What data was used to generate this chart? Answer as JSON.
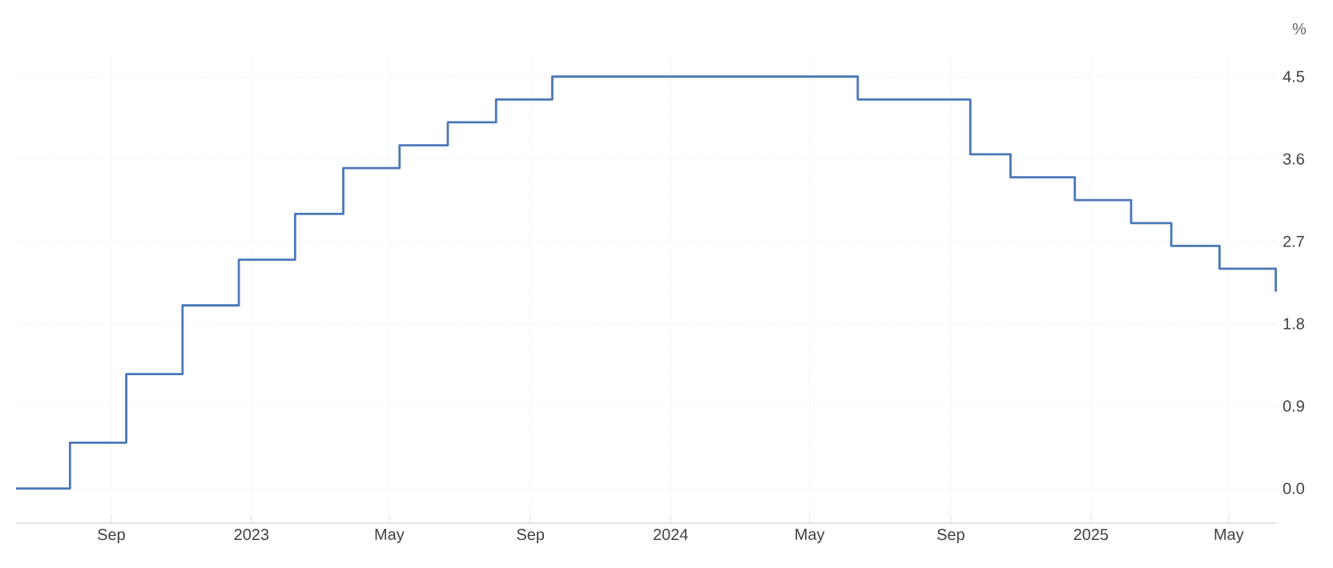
{
  "chart_data": {
    "type": "step",
    "ylabel": "%",
    "x": [
      "2022-06-10",
      "2022-07-27",
      "2022-09-14",
      "2022-11-02",
      "2022-12-21",
      "2023-02-08",
      "2023-03-22",
      "2023-05-10",
      "2023-06-21",
      "2023-08-02",
      "2023-09-20",
      "2024-06-12",
      "2024-09-18",
      "2024-10-23",
      "2024-12-18",
      "2025-02-05",
      "2025-03-12",
      "2025-04-23",
      "2025-06-11"
    ],
    "series": [
      {
        "color": "#4a78b8",
        "values": [
          0,
          0.5,
          1.25,
          2.0,
          2.5,
          3.0,
          3.5,
          3.75,
          4.0,
          4.25,
          4.5,
          4.25,
          3.65,
          3.4,
          3.15,
          2.9,
          2.65,
          2.4,
          2.15
        ]
      }
    ],
    "xlim": [
      "2022-06-10",
      "2025-06-12"
    ],
    "xticks": [
      {
        "value": "2022-09-01",
        "label": "Sep"
      },
      {
        "value": "2023-01-01",
        "label": "2023"
      },
      {
        "value": "2023-05-01",
        "label": "May"
      },
      {
        "value": "2023-09-01",
        "label": "Sep"
      },
      {
        "value": "2024-01-01",
        "label": "2024"
      },
      {
        "value": "2024-05-01",
        "label": "May"
      },
      {
        "value": "2024-09-01",
        "label": "Sep"
      },
      {
        "value": "2025-01-01",
        "label": "2025"
      },
      {
        "value": "2025-05-01",
        "label": "May"
      }
    ],
    "ylim": [
      -0.38,
      4.76
    ],
    "yticks": [
      {
        "value": 0,
        "label": "0.0"
      },
      0.9,
      1.8,
      2.7,
      3.6,
      4.5
    ],
    "grid": true,
    "marker": "none",
    "line_style": "solid"
  }
}
